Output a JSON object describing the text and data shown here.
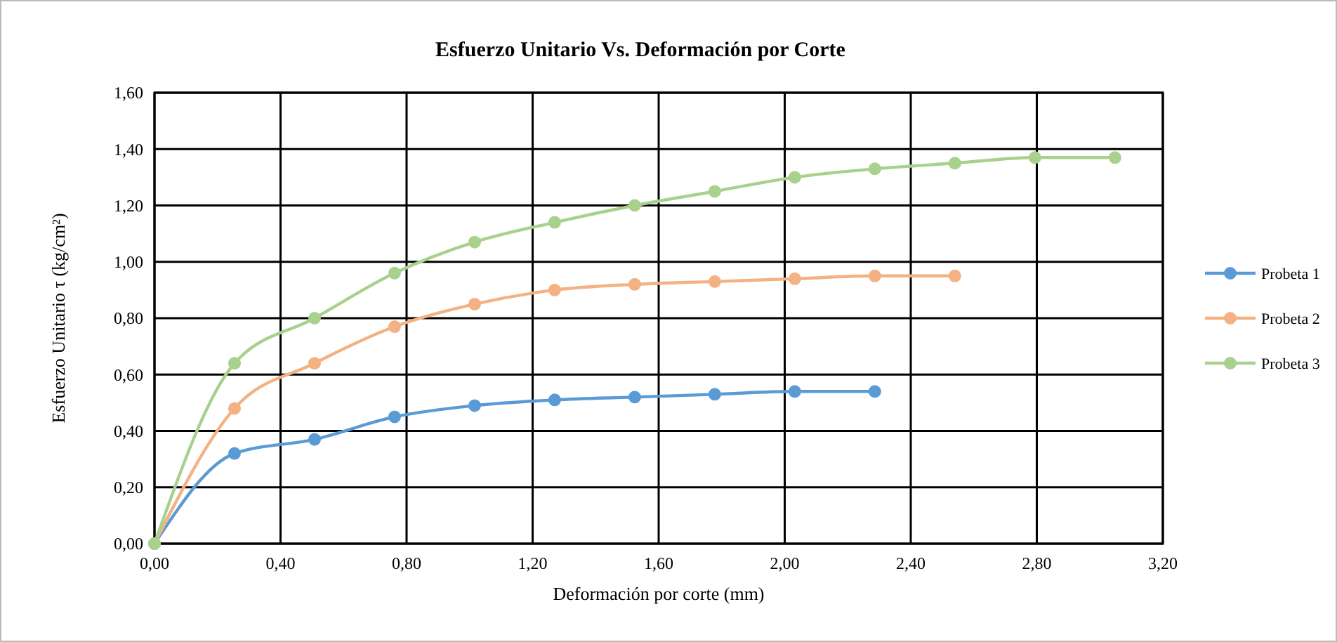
{
  "chart_data": {
    "type": "line",
    "title": "Esfuerzo Unitario Vs. Deformación por Corte",
    "xlabel": "Deformación por corte (mm)",
    "ylabel": "Esfuerzo Unitario τ (kg/cm²)",
    "x": [
      0,
      0.254,
      0.508,
      0.762,
      1.016,
      1.27,
      1.524,
      1.778,
      2.032,
      2.286,
      2.54,
      2.794,
      3.048
    ],
    "series": [
      {
        "name": "Probeta 1",
        "color": "#5b9bd5",
        "values": [
          0,
          0.32,
          0.37,
          0.45,
          0.49,
          0.51,
          0.52,
          0.53,
          0.54,
          0.54,
          null,
          null,
          null
        ]
      },
      {
        "name": "Probeta 2",
        "color": "#f4b183",
        "values": [
          0,
          0.48,
          0.64,
          0.77,
          0.85,
          0.9,
          0.92,
          0.93,
          0.94,
          0.95,
          0.95,
          null,
          null
        ]
      },
      {
        "name": "Probeta 3",
        "color": "#a9d18e",
        "values": [
          0,
          0.64,
          0.8,
          0.96,
          1.07,
          1.14,
          1.2,
          1.25,
          1.3,
          1.33,
          1.35,
          1.37,
          1.37
        ]
      }
    ],
    "xlim": [
      0,
      3.2
    ],
    "xticks": [
      {
        "value": 0,
        "label": "0,00"
      },
      {
        "value": 0.4,
        "label": "0,40"
      },
      {
        "value": 0.8,
        "label": "0,80"
      },
      {
        "value": 1.2,
        "label": "1,20"
      },
      {
        "value": 1.6,
        "label": "1,60"
      },
      {
        "value": 2.0,
        "label": "2,00"
      },
      {
        "value": 2.4,
        "label": "2,40"
      },
      {
        "value": 2.8,
        "label": "2,80"
      },
      {
        "value": 3.2,
        "label": "3,20"
      }
    ],
    "ylim": [
      0,
      1.6
    ],
    "yticks": [
      {
        "value": 0,
        "label": "0,00"
      },
      {
        "value": 0.2,
        "label": "0,20"
      },
      {
        "value": 0.4,
        "label": "0,40"
      },
      {
        "value": 0.6,
        "label": "0,60"
      },
      {
        "value": 0.8,
        "label": "0,80"
      },
      {
        "value": 1.0,
        "label": "1,00"
      },
      {
        "value": 1.2,
        "label": "1,20"
      },
      {
        "value": 1.4,
        "label": "1,40"
      },
      {
        "value": 1.6,
        "label": "1,60"
      }
    ],
    "grid": true,
    "legend": "right",
    "marker": "circle",
    "line_style": "solid"
  }
}
